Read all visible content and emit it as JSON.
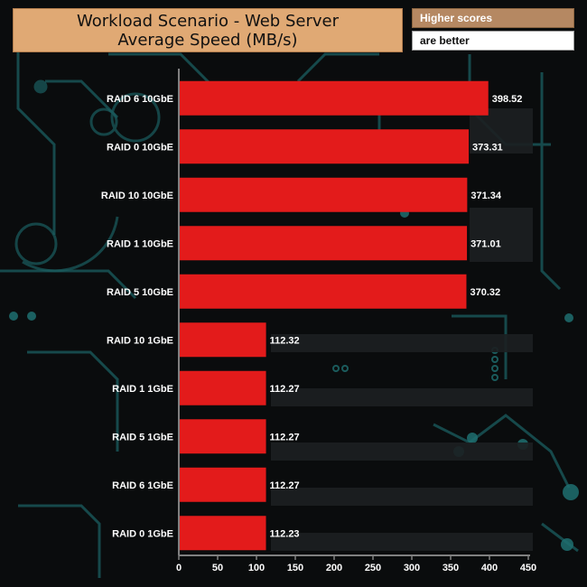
{
  "header": {
    "title_line1": "Workload Scenario - Web Server",
    "title_line2": "Average Speed (MB/s)",
    "note_line1": "Higher scores",
    "note_line2": "are better"
  },
  "colors": {
    "bar": "#e31b1b",
    "axis": "#808080",
    "title_bg": "#e0a974",
    "note_bg": "#b58862",
    "circuit": "#1f6a6a"
  },
  "chart_data": {
    "type": "bar",
    "orientation": "horizontal",
    "categories": [
      "RAID 6 10GbE",
      "RAID 0 10GbE",
      "RAID 10 10GbE",
      "RAID 1 10GbE",
      "RAID 5 10GbE",
      "RAID 10 1GbE",
      "RAID 1 1GbE",
      "RAID 5 1GbE",
      "RAID 6 1GbE",
      "RAID 0 1GbE"
    ],
    "values": [
      398.52,
      373.31,
      371.34,
      371.01,
      370.32,
      112.32,
      112.27,
      112.27,
      112.27,
      112.23
    ],
    "value_labels": [
      "398.52",
      "373.31",
      "371.34",
      "371.01",
      "370.32",
      "112.32",
      "112.27",
      "112.27",
      "112.27",
      "112.23"
    ],
    "title": "Workload Scenario - Web Server Average Speed (MB/s)",
    "xlabel": "",
    "ylabel": "",
    "xlim": [
      0,
      450
    ],
    "xticks": [
      "0",
      "50",
      "100",
      "150",
      "200",
      "250",
      "300",
      "350",
      "400",
      "450"
    ],
    "grid": false,
    "legend": "none"
  }
}
